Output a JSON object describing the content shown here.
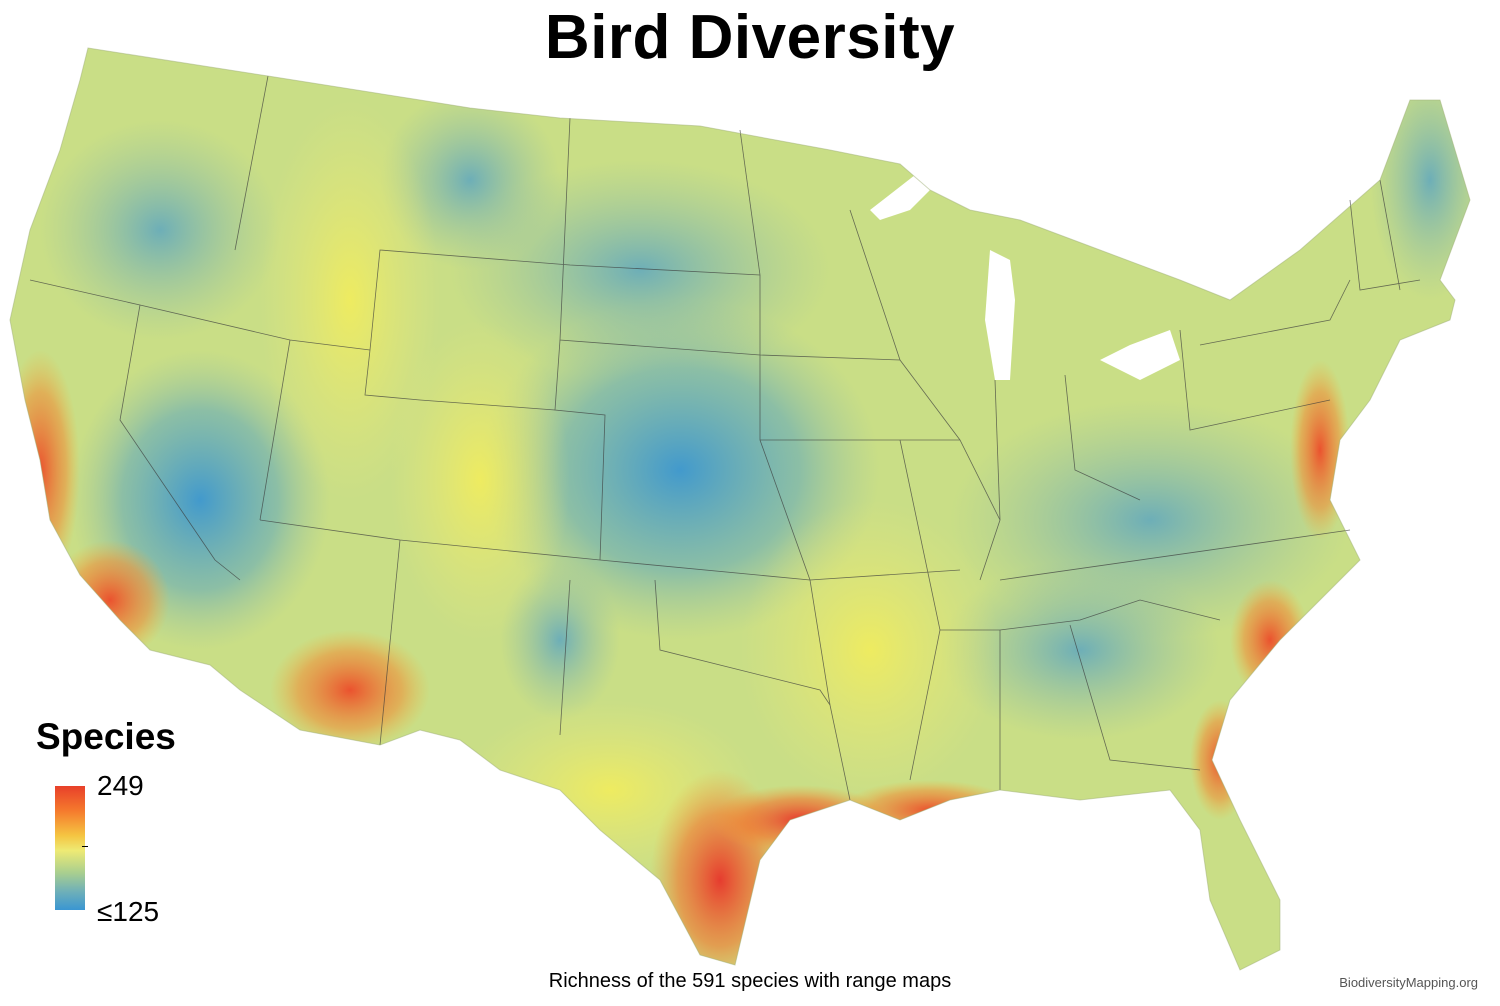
{
  "title": "Bird Diversity",
  "legend": {
    "title": "Species",
    "max_label": "249",
    "min_label": "≤125",
    "colors": [
      "#e8402a",
      "#f57a2d",
      "#f5c542",
      "#eeea74",
      "#a9cf8f",
      "#6fb0b8",
      "#3a96d2"
    ]
  },
  "caption": "Richness of the 591 species with range maps",
  "credit": "BiodiversityMapping.org"
}
